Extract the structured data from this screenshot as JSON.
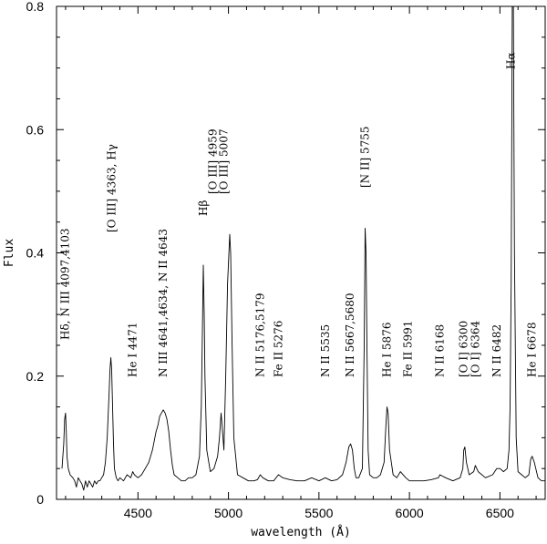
{
  "chart_data": {
    "type": "line",
    "title": "",
    "xlabel": "wavelength (Å)",
    "ylabel": "Flux",
    "xlim": [
      4050,
      6750
    ],
    "ylim": [
      0,
      0.8
    ],
    "grid": false,
    "x_ticks": [
      4500,
      5000,
      5500,
      6000,
      6500
    ],
    "y_ticks": [
      0,
      0.2,
      0.4,
      0.6,
      0.8
    ],
    "x_tick_labels": [
      "4500",
      "5000",
      "5500",
      "6000",
      "6500"
    ],
    "y_tick_labels": [
      "0",
      "0.2",
      "0.4",
      "0.6",
      "0.8"
    ],
    "series": [
      {
        "x": [
          4080,
          4090,
          4095,
          4100,
          4104,
          4108,
          4115,
          4125,
          4140,
          4150,
          4160,
          4170,
          4180,
          4190,
          4200,
          4210,
          4220,
          4230,
          4240,
          4250,
          4260,
          4270,
          4280,
          4290,
          4300,
          4310,
          4320,
          4330,
          4340,
          4345,
          4350,
          4355,
          4360,
          4365,
          4370,
          4380,
          4390,
          4400,
          4420,
          4440,
          4460,
          4471,
          4480,
          4500,
          4520,
          4540,
          4560,
          4580,
          4600,
          4610,
          4620,
          4630,
          4640,
          4650,
          4660,
          4670,
          4680,
          4690,
          4700,
          4720,
          4740,
          4760,
          4780,
          4800,
          4820,
          4840,
          4850,
          4855,
          4861,
          4866,
          4870,
          4880,
          4900,
          4920,
          4940,
          4950,
          4959,
          4965,
          4975,
          4985,
          4995,
          5007,
          5012,
          5020,
          5030,
          5050,
          5080,
          5110,
          5140,
          5160,
          5176,
          5190,
          5220,
          5250,
          5276,
          5300,
          5340,
          5380,
          5420,
          5460,
          5500,
          5535,
          5570,
          5600,
          5630,
          5650,
          5665,
          5675,
          5685,
          5695,
          5705,
          5720,
          5740,
          5750,
          5755,
          5760,
          5765,
          5772,
          5780,
          5800,
          5820,
          5840,
          5860,
          5870,
          5876,
          5882,
          5890,
          5910,
          5930,
          5950,
          5980,
          6000,
          6040,
          6080,
          6120,
          6160,
          6168,
          6200,
          6240,
          6280,
          6295,
          6300,
          6306,
          6315,
          6330,
          6355,
          6364,
          6380,
          6420,
          6460,
          6482,
          6500,
          6520,
          6540,
          6550,
          6556,
          6562,
          6568,
          6574,
          6580,
          6590,
          6600,
          6620,
          6640,
          6660,
          6670,
          6678,
          6690,
          6710,
          6730,
          6750
        ],
        "y": [
          0.05,
          0.09,
          0.13,
          0.14,
          0.11,
          0.07,
          0.05,
          0.04,
          0.035,
          0.03,
          0.02,
          0.035,
          0.03,
          0.025,
          0.015,
          0.03,
          0.02,
          0.03,
          0.025,
          0.02,
          0.03,
          0.025,
          0.03,
          0.03,
          0.035,
          0.04,
          0.06,
          0.1,
          0.17,
          0.21,
          0.23,
          0.21,
          0.15,
          0.09,
          0.05,
          0.035,
          0.03,
          0.035,
          0.03,
          0.04,
          0.035,
          0.045,
          0.04,
          0.035,
          0.04,
          0.05,
          0.06,
          0.08,
          0.11,
          0.12,
          0.135,
          0.14,
          0.145,
          0.14,
          0.13,
          0.11,
          0.08,
          0.055,
          0.04,
          0.035,
          0.03,
          0.03,
          0.035,
          0.035,
          0.04,
          0.07,
          0.15,
          0.25,
          0.38,
          0.3,
          0.2,
          0.08,
          0.045,
          0.05,
          0.07,
          0.1,
          0.14,
          0.12,
          0.08,
          0.2,
          0.35,
          0.43,
          0.4,
          0.25,
          0.1,
          0.04,
          0.035,
          0.03,
          0.03,
          0.032,
          0.04,
          0.035,
          0.03,
          0.03,
          0.04,
          0.035,
          0.032,
          0.03,
          0.03,
          0.035,
          0.03,
          0.035,
          0.03,
          0.032,
          0.04,
          0.06,
          0.085,
          0.09,
          0.08,
          0.05,
          0.035,
          0.035,
          0.05,
          0.25,
          0.44,
          0.4,
          0.25,
          0.08,
          0.04,
          0.035,
          0.035,
          0.04,
          0.06,
          0.12,
          0.15,
          0.14,
          0.08,
          0.04,
          0.035,
          0.045,
          0.035,
          0.03,
          0.03,
          0.03,
          0.032,
          0.035,
          0.04,
          0.035,
          0.03,
          0.035,
          0.05,
          0.08,
          0.085,
          0.06,
          0.04,
          0.045,
          0.055,
          0.045,
          0.035,
          0.04,
          0.05,
          0.05,
          0.045,
          0.05,
          0.08,
          0.15,
          0.35,
          0.8,
          0.8,
          0.4,
          0.1,
          0.045,
          0.04,
          0.035,
          0.04,
          0.065,
          0.07,
          0.06,
          0.035,
          0.03,
          0.03
        ]
      }
    ],
    "annotations": [
      {
        "text": "Hδ, N III 4097,4103",
        "x": 4097
      },
      {
        "text": "[O III] 4363, Hγ",
        "x": 4355
      },
      {
        "text": "He I 4471",
        "x": 4471
      },
      {
        "text": "N III 4641,4634, N II 4643",
        "x": 4640
      },
      {
        "text": "Hβ",
        "x": 4861
      },
      {
        "text": "[O III] 4959",
        "x": 4915
      },
      {
        "text": "[O III] 5007",
        "x": 4975
      },
      {
        "text": "N II 5176,5179",
        "x": 5176
      },
      {
        "text": "Fe II 5276",
        "x": 5276
      },
      {
        "text": "N II 5535",
        "x": 5535
      },
      {
        "text": "N II 5667,5680",
        "x": 5673
      },
      {
        "text": "[N II] 5755",
        "x": 5755
      },
      {
        "text": "He I 5876",
        "x": 5876
      },
      {
        "text": "Fe II 5991",
        "x": 5991
      },
      {
        "text": "N II 6168",
        "x": 6168
      },
      {
        "text": "[O I] 6300",
        "x": 6300
      },
      {
        "text": "[O I] 6364",
        "x": 6364
      },
      {
        "text": "N II 6482",
        "x": 6482
      },
      {
        "text": "Hα",
        "x": 6562
      },
      {
        "text": "He I 6678",
        "x": 6678
      }
    ]
  }
}
